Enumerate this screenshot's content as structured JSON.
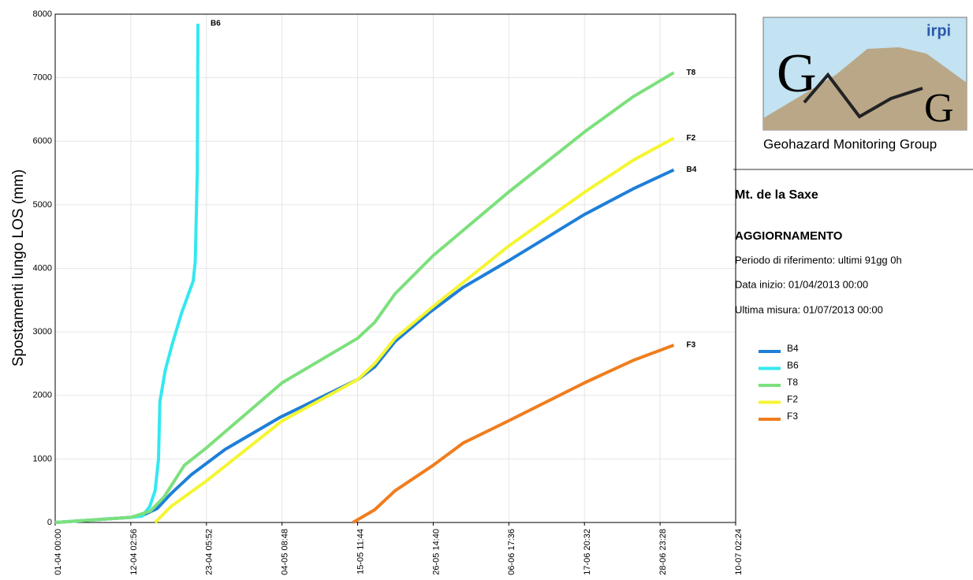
{
  "chart_data": {
    "type": "line",
    "ylabel": "Spostamenti lungo LOS (mm)",
    "xlim": [
      0,
      100.1
    ],
    "xticks": [
      {
        "value": 0,
        "label": "01-04 00:00"
      },
      {
        "value": 11.1222,
        "label": "12-04 02:56"
      },
      {
        "value": 22.2444,
        "label": "23-04 05:52"
      },
      {
        "value": 33.3667,
        "label": "04-05 08:48"
      },
      {
        "value": 44.4889,
        "label": "15-05 11:44"
      },
      {
        "value": 55.6111,
        "label": "26-05 14:40"
      },
      {
        "value": 66.7333,
        "label": "06-06 17:36"
      },
      {
        "value": 77.8556,
        "label": "17-06 20:32"
      },
      {
        "value": 88.9778,
        "label": "28-06 23:28"
      },
      {
        "value": 100.1,
        "label": "10-07 02:24"
      }
    ],
    "ylim": [
      0,
      8000
    ],
    "yticks": [
      0,
      1000,
      2000,
      3000,
      4000,
      5000,
      6000,
      7000,
      8000
    ],
    "grid": true,
    "series": [
      {
        "name": "B4",
        "color": "#1e7fd8",
        "x": [
          0,
          11.1,
          13,
          15,
          17,
          20,
          25,
          33,
          44.5,
          47,
          50,
          55,
          60,
          66.7,
          77.9,
          85,
          91
        ],
        "values": [
          0,
          80,
          120,
          220,
          450,
          750,
          1150,
          1650,
          2250,
          2450,
          2850,
          3300,
          3700,
          4120,
          4850,
          5250,
          5550
        ]
      },
      {
        "name": "B6",
        "color": "#33e8f0",
        "x": [
          0,
          11.1,
          12.8,
          13.9,
          14.7,
          15.2,
          15.4,
          16.2,
          17.2,
          18.6,
          20.3,
          20.6,
          20.9,
          21.0
        ],
        "values": [
          0,
          80,
          100,
          250,
          500,
          1000,
          1900,
          2400,
          2800,
          3300,
          3800,
          4100,
          5500,
          7850
        ]
      },
      {
        "name": "T8",
        "color": "#7ce07c",
        "x": [
          0,
          11.1,
          14,
          16,
          19,
          22.2,
          33.4,
          44.5,
          47,
          50,
          55.6,
          66.7,
          77.9,
          85,
          91
        ],
        "values": [
          0,
          80,
          180,
          400,
          900,
          1170,
          2200,
          2900,
          3150,
          3600,
          4200,
          5200,
          6150,
          6700,
          7080
        ]
      },
      {
        "name": "F2",
        "color": "#f5f532",
        "x": [
          14.7,
          17,
          22.2,
          33.4,
          44.5,
          47,
          50,
          55.6,
          66.7,
          77.9,
          85,
          91
        ],
        "values": [
          0,
          250,
          650,
          1600,
          2250,
          2500,
          2900,
          3400,
          4350,
          5200,
          5700,
          6050
        ]
      },
      {
        "name": "F3",
        "color": "#f07d1e",
        "x": [
          43.8,
          47,
          50,
          55.6,
          60,
          66.7,
          77.9,
          85,
          91
        ],
        "values": [
          0,
          200,
          500,
          900,
          1250,
          1600,
          2200,
          2550,
          2790
        ]
      }
    ]
  },
  "panel": {
    "logo_brand": "irpi",
    "logo_letters": [
      "G",
      "G"
    ],
    "logo_caption": "Geohazard Monitoring Group",
    "site": "Mt. de la Saxe",
    "heading": "AGGIORNAMENTO",
    "lines": [
      "Periodo di riferimento: ultimi 91gg 0h",
      "Data inizio: 01/04/2013 00:00",
      "Ultima misura:  01/07/2013 00:00"
    ]
  }
}
